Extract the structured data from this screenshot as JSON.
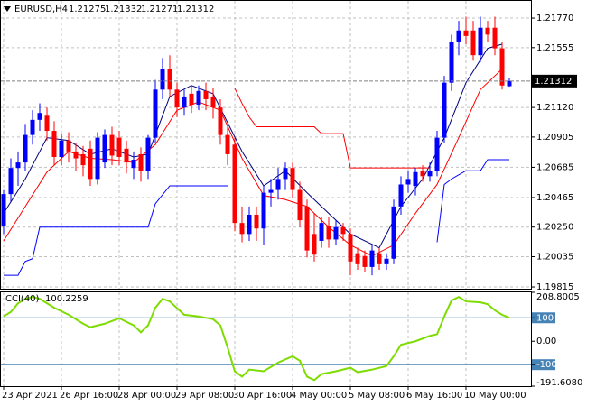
{
  "chart_data": {
    "type": "candlestick",
    "symbol": "EURUSD,H4",
    "bull_color": "#0000ff",
    "bear_color": "#ff0000",
    "grid": true,
    "ylim": [
      1.19802,
      1.21895
    ],
    "yticks": [
      {
        "value": 1.2177,
        "label": "1.21770"
      },
      1.21555,
      {
        "value": 1.2112,
        "label": "1.21120"
      },
      1.20905,
      1.20685,
      1.20465,
      {
        "value": 1.2025,
        "label": "1.20250"
      },
      1.20035,
      1.19815
    ],
    "xticks": [
      {
        "value": 0,
        "label": "23 Apr 2021"
      },
      {
        "value": 8,
        "label": "26 Apr 16:00"
      },
      {
        "value": 16,
        "label": "28 Apr 00:00"
      },
      {
        "value": 24,
        "label": "29 Apr 08:00"
      },
      {
        "value": 32,
        "label": "30 Apr 16:00"
      },
      {
        "value": 40,
        "label": "4 May 00:00"
      },
      {
        "value": 48,
        "label": "5 May 08:00"
      },
      {
        "value": 56,
        "label": "6 May 16:00"
      },
      {
        "value": 64,
        "label": "10 May 00:00"
      }
    ],
    "candles": {
      "open": [
        1.2026,
        1.2049,
        1.2068,
        1.2072,
        1.2092,
        1.2103,
        1.2106,
        1.2095,
        1.2076,
        1.2088,
        1.208,
        1.2078,
        1.2082,
        1.206,
        1.2072,
        1.2092,
        1.209,
        1.2082,
        1.2068,
        1.2078,
        1.2066,
        1.209,
        1.2125,
        1.214,
        1.2125,
        1.2112,
        1.2122,
        1.2114,
        1.2124,
        1.212,
        1.2112,
        1.2092,
        1.2085,
        1.2028,
        1.202,
        1.2034,
        1.2024,
        1.205,
        1.2052,
        1.206,
        1.2068,
        1.2052,
        1.204,
        1.202,
        1.2015,
        1.2026,
        1.2016,
        1.2025,
        1.202,
        1.2006,
        1.2004,
        1.1996,
        1.2006,
        1.1998,
        1.2002,
        1.204,
        1.2056,
        1.2055,
        1.2066,
        1.2062,
        1.2066,
        1.209,
        1.213,
        1.216,
        1.2168,
        1.2168,
        1.215,
        1.217,
        1.217,
        1.2155,
        1.21275
      ],
      "high": [
        1.2052,
        1.2075,
        1.208,
        1.21,
        1.211,
        1.2115,
        1.2112,
        1.2102,
        1.2093,
        1.2094,
        1.2086,
        1.2084,
        1.2088,
        1.2094,
        1.2096,
        1.2098,
        1.2095,
        1.2088,
        1.208,
        1.2083,
        1.2092,
        1.2132,
        1.2148,
        1.215,
        1.213,
        1.2125,
        1.2128,
        1.2128,
        1.213,
        1.2126,
        1.2118,
        1.21,
        1.209,
        1.204,
        1.204,
        1.204,
        1.2055,
        1.206,
        1.2068,
        1.2072,
        1.2072,
        1.2058,
        1.2045,
        1.2035,
        1.2032,
        1.2032,
        1.203,
        1.2028,
        1.2024,
        1.201,
        1.2008,
        1.2012,
        1.201,
        1.2006,
        1.2045,
        1.2062,
        1.2066,
        1.2068,
        1.207,
        1.2072,
        1.2095,
        1.2135,
        1.2165,
        1.2175,
        1.2178,
        1.2175,
        1.2178,
        1.2175,
        1.2178,
        1.216,
        1.21332
      ],
      "low": [
        1.202,
        1.2043,
        1.2055,
        1.2066,
        1.2085,
        1.2095,
        1.2088,
        1.207,
        1.207,
        1.2072,
        1.2066,
        1.2062,
        1.2055,
        1.2056,
        1.2068,
        1.207,
        1.207,
        1.2064,
        1.206,
        1.2058,
        1.206,
        1.2086,
        1.2118,
        1.212,
        1.2105,
        1.2106,
        1.2108,
        1.211,
        1.211,
        1.2104,
        1.2085,
        1.207,
        1.2022,
        1.2014,
        1.2015,
        1.2015,
        1.2012,
        1.204,
        1.2045,
        1.2052,
        1.2046,
        1.2025,
        1.2003,
        1.2,
        1.201,
        1.201,
        1.2012,
        1.2015,
        1.199,
        1.1994,
        1.1992,
        1.199,
        1.1994,
        1.1994,
        1.1998,
        1.2034,
        1.205,
        1.2048,
        1.2058,
        1.2058,
        1.2062,
        1.2086,
        1.2124,
        1.215,
        1.2158,
        1.2146,
        1.2145,
        1.216,
        1.215,
        1.2125,
        1.21271
      ],
      "close": [
        1.2049,
        1.2068,
        1.2072,
        1.2092,
        1.2103,
        1.2108,
        1.2095,
        1.2076,
        1.2088,
        1.208,
        1.2075,
        1.207,
        1.206,
        1.209,
        1.2092,
        1.2077,
        1.2076,
        1.2072,
        1.2074,
        1.2066,
        1.209,
        1.2125,
        1.214,
        1.2125,
        1.2112,
        1.212,
        1.2114,
        1.2124,
        1.2118,
        1.2112,
        1.2092,
        1.2078,
        1.2028,
        1.202,
        1.2034,
        1.2024,
        1.205,
        1.2052,
        1.206,
        1.2068,
        1.2052,
        1.203,
        1.2008,
        1.2005,
        1.2028,
        1.2016,
        1.2025,
        1.202,
        1.2,
        1.1998,
        1.1996,
        1.2008,
        1.1998,
        1.2002,
        1.204,
        1.2056,
        1.206,
        1.2065,
        1.2062,
        1.2066,
        1.209,
        1.213,
        1.216,
        1.2168,
        1.2164,
        1.215,
        1.217,
        1.2165,
        1.2155,
        1.2128,
        1.21312
      ]
    },
    "lines": [
      {
        "color": "#000080",
        "x": [
          0,
          3,
          6,
          9,
          12,
          15,
          18,
          20,
          23,
          26,
          29,
          33,
          36,
          39,
          42,
          45,
          48,
          52,
          55,
          58,
          61,
          64,
          67,
          69
        ],
        "values": [
          1.2035,
          1.206,
          1.209,
          1.2088,
          1.2078,
          1.2082,
          1.2076,
          1.2078,
          1.212,
          1.2128,
          1.2122,
          1.208,
          1.2055,
          1.2066,
          1.205,
          1.2035,
          1.202,
          1.201,
          1.204,
          1.206,
          1.209,
          1.213,
          1.2155,
          1.2158
        ]
      },
      {
        "color": "#ff0000",
        "x": [
          0,
          3,
          6,
          9,
          12,
          15,
          18,
          21,
          24,
          27,
          30,
          33,
          36,
          39,
          42,
          45,
          48,
          51,
          54,
          57,
          60,
          63,
          66,
          69
        ],
        "values": [
          1.2015,
          1.204,
          1.2065,
          1.208,
          1.2075,
          1.2074,
          1.2072,
          1.2085,
          1.211,
          1.2116,
          1.211,
          1.2075,
          1.2048,
          1.2045,
          1.204,
          1.2025,
          1.2012,
          1.2004,
          1.2012,
          1.2035,
          1.2056,
          1.209,
          1.2125,
          1.214
        ]
      },
      {
        "color": "#0000ff",
        "x": [
          0,
          2,
          3,
          4,
          5,
          20,
          21,
          23,
          31,
          59,
          60,
          61,
          62,
          64,
          66,
          67,
          70
        ],
        "values": [
          1.199,
          1.199,
          1.2,
          1.2002,
          1.2025,
          1.2025,
          1.2042,
          1.2055,
          1.2055,
          null,
          1.2014,
          1.2056,
          1.206,
          1.2066,
          1.2066,
          1.2074,
          1.2074
        ]
      },
      {
        "color": "#ff0000",
        "x": [
          32,
          33,
          34,
          35,
          43,
          44,
          47,
          48,
          59
        ],
        "values": [
          1.2126,
          1.2115,
          1.2105,
          1.2098,
          1.2098,
          1.2093,
          1.2093,
          1.2068,
          1.2068
        ]
      }
    ],
    "cci": {
      "label": "CCI(40)",
      "color": "#7fdc00",
      "ylim": [
        -191.608,
        208.8005
      ],
      "yticks": [
        {
          "value": 208.8005,
          "label": "208.8005"
        },
        100,
        {
          "value": 0,
          "label": "0.00"
        },
        -100,
        {
          "value": -191.608,
          "label": "-191.6080"
        }
      ],
      "levels": [
        100,
        -100
      ],
      "x": [
        0,
        1,
        2,
        3,
        4,
        5,
        6,
        7,
        9,
        11,
        12,
        14,
        16,
        18,
        19,
        20,
        21,
        22,
        23,
        25,
        27,
        29,
        30,
        31,
        32,
        33,
        34,
        36,
        38,
        40,
        41,
        42,
        43,
        44,
        46,
        48,
        49,
        51,
        53,
        54,
        55,
        57,
        59,
        60,
        61,
        62,
        63,
        64,
        66,
        67,
        68,
        69,
        70
      ],
      "values": [
        106,
        125,
        162,
        181,
        189,
        181,
        162,
        143,
        113,
        75,
        60,
        75,
        98,
        68,
        38,
        68,
        143,
        181,
        170,
        113,
        106,
        94,
        68,
        -26,
        -128,
        -151,
        -121,
        -128,
        -91,
        -64,
        -83,
        -151,
        -166,
        -140,
        -128,
        -113,
        -132,
        -121,
        -106,
        -64,
        -15,
        0,
        23,
        30,
        106,
        174,
        189,
        170,
        166,
        158,
        132,
        113,
        100.2259
      ]
    }
  }
}
